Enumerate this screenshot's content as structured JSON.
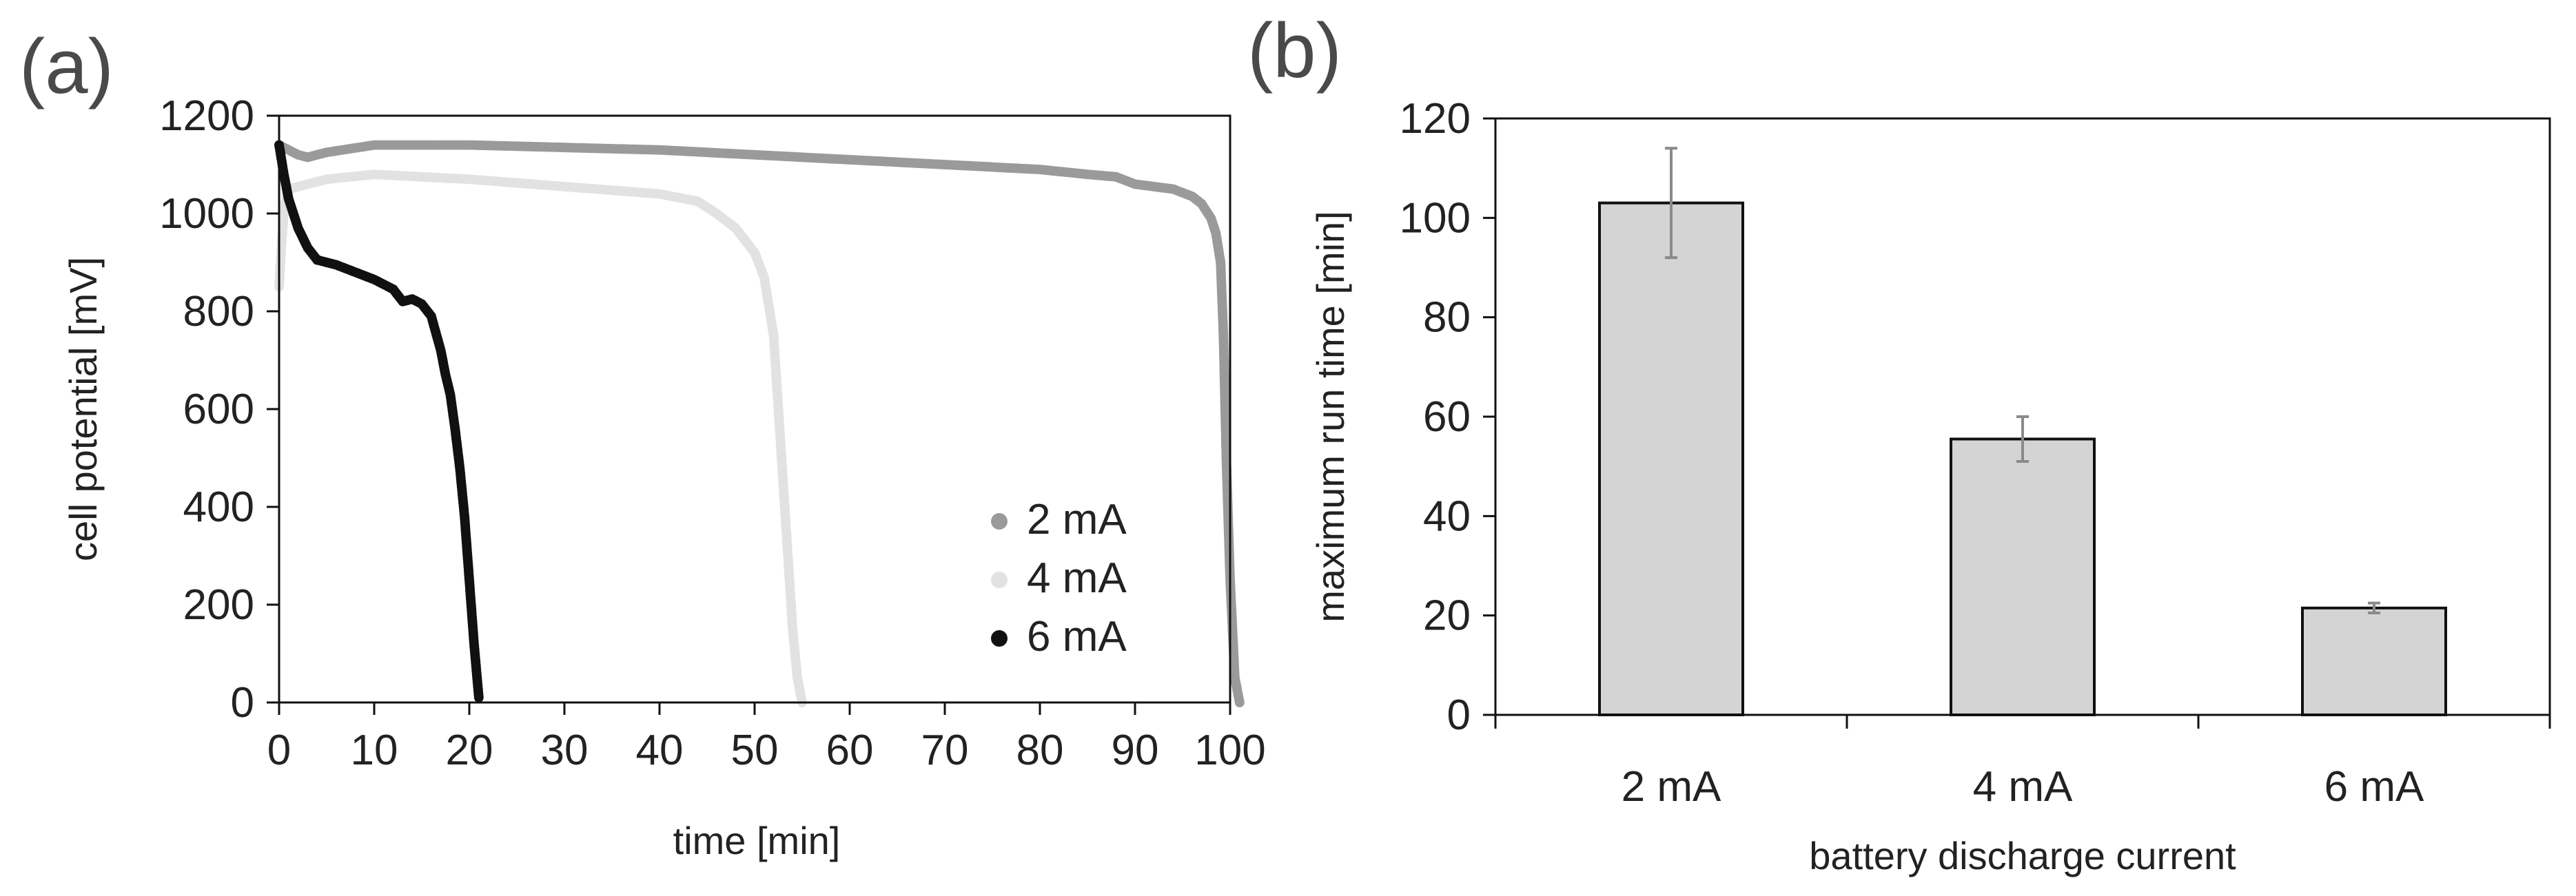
{
  "figure": {
    "panel_a_label": "(a)",
    "panel_b_label": "(b)"
  },
  "chart_data": [
    {
      "panel": "(a)",
      "type": "scatter",
      "xlabel": "time [min]",
      "ylabel": "cell potential [mV]",
      "xlim": [
        0,
        100
      ],
      "ylim": [
        0,
        1200
      ],
      "x_ticks": [
        0,
        10,
        20,
        30,
        40,
        50,
        60,
        70,
        80,
        90,
        100
      ],
      "y_ticks": [
        0,
        200,
        400,
        600,
        800,
        1000,
        1200
      ],
      "grid": false,
      "legend_position": "bottom-right",
      "series": [
        {
          "name": "2 mA",
          "color": "#9a9a9a",
          "x": [
            0,
            1,
            2,
            3,
            5,
            10,
            20,
            30,
            40,
            50,
            60,
            70,
            80,
            85,
            88,
            90,
            92,
            94,
            96,
            97,
            98,
            98.5,
            99,
            99.3,
            99.6,
            100,
            100.5,
            101
          ],
          "y": [
            1140,
            1130,
            1120,
            1115,
            1125,
            1140,
            1140,
            1135,
            1130,
            1120,
            1110,
            1100,
            1090,
            1080,
            1075,
            1060,
            1055,
            1050,
            1035,
            1020,
            990,
            960,
            900,
            750,
            500,
            250,
            50,
            0
          ]
        },
        {
          "name": "4 mA",
          "color": "#e2e2e2",
          "x": [
            0,
            0.3,
            0.6,
            1,
            2,
            3,
            5,
            10,
            20,
            30,
            40,
            44,
            46,
            48,
            50,
            51,
            52,
            52.5,
            53,
            53.5,
            54,
            54.5,
            55
          ],
          "y": [
            850,
            950,
            1020,
            1050,
            1055,
            1060,
            1070,
            1080,
            1070,
            1055,
            1040,
            1025,
            1000,
            970,
            920,
            870,
            750,
            600,
            450,
            300,
            150,
            50,
            0
          ]
        },
        {
          "name": "6 mA",
          "color": "#111111",
          "x": [
            0,
            0.5,
            1,
            2,
            3,
            4,
            6,
            8,
            10,
            12,
            13,
            14,
            15,
            16,
            17,
            17.5,
            18,
            18.5,
            19,
            19.5,
            20,
            20.5,
            21
          ],
          "y": [
            1140,
            1080,
            1030,
            970,
            930,
            905,
            895,
            880,
            865,
            845,
            820,
            825,
            815,
            790,
            720,
            670,
            630,
            560,
            480,
            380,
            250,
            120,
            10
          ]
        }
      ]
    },
    {
      "panel": "(b)",
      "type": "bar",
      "categories": [
        "2 mA",
        "4 mA",
        "6 mA"
      ],
      "values": [
        103,
        55.5,
        21.5
      ],
      "error": [
        11,
        4.5,
        1
      ],
      "xlabel": "battery discharge current",
      "ylabel": "maximum run time [min]",
      "ylim": [
        0,
        120
      ],
      "y_ticks": [
        0,
        20,
        40,
        60,
        80,
        100,
        120
      ],
      "grid": false,
      "bar_color": "#d4d4d4",
      "error_bar_color": "#8a8a8a"
    }
  ]
}
